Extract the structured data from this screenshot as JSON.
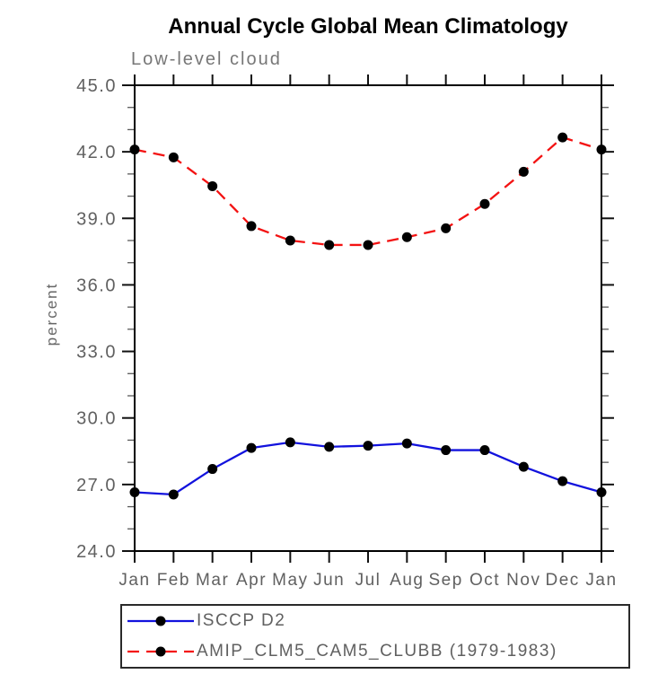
{
  "chart_data": {
    "type": "line",
    "title": "Annual Cycle Global Mean Climatology",
    "subtitle": "Low-level cloud",
    "ylabel": "percent",
    "categories": [
      "Jan",
      "Feb",
      "Mar",
      "Apr",
      "May",
      "Jun",
      "Jul",
      "Aug",
      "Sep",
      "Oct",
      "Nov",
      "Dec",
      "Jan"
    ],
    "series": [
      {
        "name": "ISCCP D2",
        "color": "#1212dd",
        "line_style": "solid",
        "marker": "filled-circle",
        "marker_color": "#000000",
        "values": [
          26.65,
          26.55,
          27.7,
          28.65,
          28.9,
          28.7,
          28.75,
          28.85,
          28.55,
          28.55,
          27.8,
          27.15,
          26.65
        ]
      },
      {
        "name": "AMIP_CLM5_CAM5_CLUBB (1979-1983)",
        "color": "#f31212",
        "line_style": "dashed",
        "marker": "filled-circle",
        "marker_color": "#000000",
        "values": [
          42.1,
          41.75,
          40.45,
          38.65,
          38.0,
          37.8,
          37.8,
          38.15,
          38.55,
          39.65,
          41.1,
          42.65,
          42.1
        ]
      }
    ],
    "ylim": [
      24.0,
      45.0
    ],
    "ytick_values": [
      45,
      42,
      39,
      36,
      33,
      30,
      27,
      24
    ],
    "ytick_labels": [
      "45.0",
      "42.0",
      "39.0",
      "36.0",
      "33.0",
      "30.0",
      "27.0",
      "24.0"
    ],
    "minor_tick_interval": 1.0,
    "grid": false,
    "legend_position": "bottom-left"
  }
}
